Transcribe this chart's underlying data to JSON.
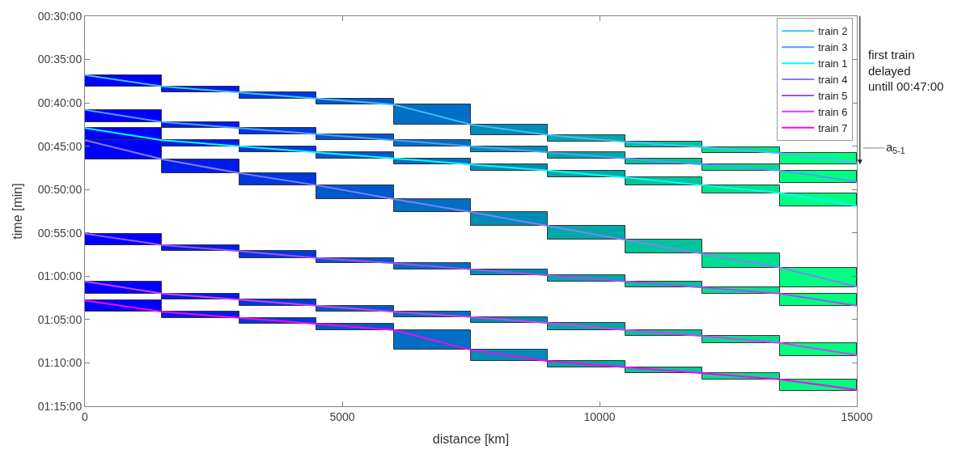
{
  "chart_data": {
    "type": "line",
    "xlabel": "distance [km]",
    "ylabel": "time [min]",
    "x": [
      0,
      1500,
      3000,
      4500,
      6000,
      7500,
      9000,
      10500,
      12000,
      13500,
      15000
    ],
    "xlim": [
      0,
      15000
    ],
    "xticks": [
      0,
      5000,
      10000,
      15000
    ],
    "ylim": [
      75,
      30
    ],
    "yticks": [
      {
        "value": 30,
        "label": "00:30:00"
      },
      {
        "value": 35,
        "label": "00:35:00"
      },
      {
        "value": 40,
        "label": "00:40:00"
      },
      {
        "value": 45,
        "label": "00:45:00"
      },
      {
        "value": 50,
        "label": "00:50:00"
      },
      {
        "value": 55,
        "label": "00:55:00"
      },
      {
        "value": 60,
        "label": "01:00:00"
      },
      {
        "value": 65,
        "label": "01:05:00"
      },
      {
        "value": 70,
        "label": "01:10:00"
      },
      {
        "value": 75,
        "label": "01:15:00"
      }
    ],
    "legend": "top right",
    "marker": "none",
    "line_style": "solid",
    "series": [
      {
        "type": "bar",
        "x": [
          750,
          2250,
          3750,
          5250,
          6750,
          8250,
          9750,
          11250,
          12750,
          14250
        ],
        "base": [
          36.8,
          38.1,
          38.8,
          39.5,
          40.2,
          42.5,
          43.7,
          44.5,
          45.1,
          45.8
        ],
        "values": [
          1.3,
          0.7,
          0.7,
          0.7,
          2.3,
          1.2,
          0.8,
          0.6,
          0.7,
          1.3
        ],
        "colors": [
          "#0000ff",
          "#001ce8",
          "#0038dc",
          "#0058cc",
          "#006ec4",
          "#008cb4",
          "#00a8a8",
          "#00c49c",
          "#00e08c",
          "#00ff80"
        ]
      },
      {
        "type": "bar",
        "x": [
          750,
          2250,
          3750,
          5250,
          6750,
          8250,
          9750,
          11250,
          12750,
          14250
        ],
        "base": [
          40.8,
          42.2,
          42.9,
          43.6,
          44.3,
          45.0,
          45.7,
          46.4,
          47.1,
          47.8
        ],
        "values": [
          1.4,
          0.7,
          0.7,
          0.7,
          0.7,
          0.7,
          0.7,
          0.7,
          0.7,
          1.4
        ],
        "colors": [
          "#0000ff",
          "#001ce8",
          "#0038dc",
          "#0058cc",
          "#006ec4",
          "#008cb4",
          "#00a8a8",
          "#00c49c",
          "#00e08c",
          "#00ff80"
        ]
      },
      {
        "type": "bar",
        "x": [
          750,
          2250,
          3750,
          5250,
          6750,
          8250,
          9750,
          11250,
          12750,
          14250
        ],
        "base": [
          42.9,
          44.3,
          45.0,
          45.7,
          46.4,
          47.1,
          47.8,
          48.6,
          49.5,
          50.4
        ],
        "values": [
          1.4,
          0.7,
          0.7,
          0.7,
          0.7,
          0.7,
          0.8,
          0.9,
          0.9,
          1.5
        ],
        "colors": [
          "#0000ff",
          "#001ce8",
          "#0038dc",
          "#0058cc",
          "#006ec4",
          "#008cb4",
          "#00a8a8",
          "#00c49c",
          "#00e08c",
          "#00ff80"
        ]
      },
      {
        "type": "bar",
        "x": [
          750,
          2250,
          3750,
          5250,
          6750,
          8250,
          9750,
          11250,
          12750,
          14250
        ],
        "base": [
          44.3,
          46.5,
          48.1,
          49.5,
          51.1,
          52.6,
          54.2,
          55.8,
          57.4,
          59.0
        ],
        "values": [
          2.2,
          1.6,
          1.4,
          1.6,
          1.5,
          1.6,
          1.6,
          1.6,
          1.6,
          2.3
        ],
        "colors": [
          "#0000ff",
          "#001ce8",
          "#0038dc",
          "#0058cc",
          "#006ec4",
          "#008cb4",
          "#00a8a8",
          "#00c49c",
          "#00e08c",
          "#00ff80"
        ]
      },
      {
        "type": "bar",
        "x": [
          750,
          2250,
          3750,
          5250,
          6750,
          8250,
          9750,
          11250,
          12750,
          14250
        ],
        "base": [
          55.1,
          56.4,
          57.1,
          57.9,
          58.5,
          59.2,
          59.9,
          60.6,
          61.3,
          62.0
        ],
        "values": [
          1.3,
          0.7,
          0.8,
          0.6,
          0.7,
          0.7,
          0.7,
          0.7,
          0.7,
          1.4
        ],
        "colors": [
          "#0000ff",
          "#001ce8",
          "#0038dc",
          "#0058cc",
          "#006ec4",
          "#008cb4",
          "#00a8a8",
          "#00c49c",
          "#00e08c",
          "#00ff80"
        ]
      },
      {
        "type": "bar",
        "x": [
          750,
          2250,
          3750,
          5250,
          6750,
          8250,
          9750,
          11250,
          12750,
          14250
        ],
        "base": [
          60.6,
          62.0,
          62.7,
          63.4,
          64.1,
          64.7,
          65.4,
          66.2,
          66.9,
          67.7
        ],
        "values": [
          1.4,
          0.7,
          0.7,
          0.7,
          0.6,
          0.7,
          0.8,
          0.7,
          0.8,
          1.5
        ],
        "colors": [
          "#0000ff",
          "#001ce8",
          "#0038dc",
          "#0058cc",
          "#006ec4",
          "#008cb4",
          "#00a8a8",
          "#00c49c",
          "#00e08c",
          "#00ff80"
        ]
      },
      {
        "type": "bar",
        "x": [
          750,
          2250,
          3750,
          5250,
          6750,
          8250,
          9750,
          11250,
          12750,
          14250
        ],
        "base": [
          62.8,
          64.1,
          64.8,
          65.5,
          66.2,
          68.5,
          69.8,
          70.5,
          71.2,
          71.9
        ],
        "values": [
          1.3,
          0.7,
          0.7,
          0.7,
          2.3,
          1.3,
          0.7,
          0.7,
          0.7,
          1.3
        ],
        "colors": [
          "#0000ff",
          "#001ce8",
          "#0038dc",
          "#0058cc",
          "#006ec4",
          "#008cb4",
          "#00a8a8",
          "#00c49c",
          "#00e08c",
          "#00ff80"
        ]
      },
      {
        "name": "train 2",
        "color": "#40c0ff",
        "values": [
          36.8,
          38.1,
          38.8,
          39.5,
          40.2,
          42.5,
          43.7,
          44.5,
          45.1,
          45.8,
          46.9
        ]
      },
      {
        "name": "train 3",
        "color": "#4d9fff",
        "values": [
          40.8,
          42.2,
          42.9,
          43.6,
          44.3,
          45.0,
          45.7,
          46.4,
          47.1,
          47.8,
          49.1
        ]
      },
      {
        "name": "train 1",
        "color": "#00ffff",
        "values": [
          42.9,
          44.3,
          45.0,
          45.7,
          46.4,
          47.1,
          47.8,
          48.6,
          49.5,
          50.4,
          51.9
        ]
      },
      {
        "name": "train 4",
        "color": "#8080ff",
        "values": [
          44.3,
          46.5,
          48.1,
          49.5,
          51.1,
          52.6,
          54.2,
          55.8,
          57.4,
          59.0,
          61.2
        ]
      },
      {
        "name": "train 5",
        "color": "#a050ff",
        "values": [
          55.1,
          56.4,
          57.1,
          57.9,
          58.5,
          59.2,
          59.9,
          60.6,
          61.3,
          62.0,
          63.4
        ]
      },
      {
        "name": "train 6",
        "color": "#d040ff",
        "values": [
          60.6,
          62.0,
          62.7,
          63.4,
          64.1,
          64.7,
          65.4,
          66.2,
          66.9,
          67.7,
          69.1
        ]
      },
      {
        "name": "train 7",
        "color": "#ff00ff",
        "values": [
          62.8,
          64.1,
          64.8,
          65.5,
          66.2,
          68.5,
          69.8,
          70.5,
          71.2,
          71.9,
          73.1
        ]
      }
    ],
    "annotations": [
      "first train delayed untill 00:47:00",
      "a$_{5-1}$"
    ]
  }
}
